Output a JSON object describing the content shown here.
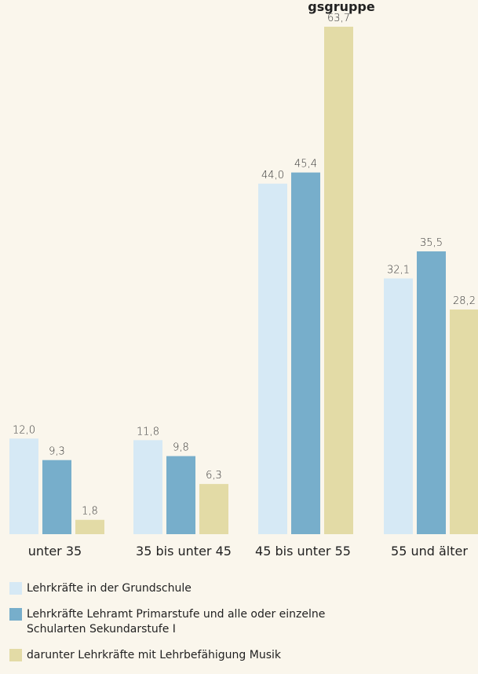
{
  "chart_data": {
    "type": "bar",
    "title_fragment": "gsgruppe",
    "categories": [
      "unter 35",
      "35 bis unter 45",
      "45 bis unter 55",
      "55 und älter"
    ],
    "series": [
      {
        "name": "Lehrkräfte in der Grundschule",
        "color": "#d6e9f5",
        "values": [
          12.0,
          11.8,
          44.0,
          32.1
        ]
      },
      {
        "name": "Lehrkräfte Lehramt Primarstufe und alle oder einzelne Schularten Sekundarstufe I",
        "color": "#77aecb",
        "values": [
          9.3,
          9.8,
          45.4,
          35.5
        ]
      },
      {
        "name": "darunter Lehrkräfte mit Lehrbefähigung Musik",
        "color": "#e3dba6",
        "values": [
          1.8,
          6.3,
          63.7,
          28.2
        ]
      }
    ],
    "value_labels": [
      [
        "12,0",
        "11,8",
        "44,0",
        "32,1"
      ],
      [
        "9,3",
        "9,8",
        "45,4",
        "35,5"
      ],
      [
        "1,8",
        "6,3",
        "63,7",
        "28,2"
      ]
    ],
    "ylim": [
      0,
      63.7
    ],
    "legend_position": "bottom"
  },
  "legend": {
    "items": [
      {
        "label": "Lehrkräfte in der Grundschule",
        "color": "#d6e9f5"
      },
      {
        "label": "Lehrkräfte Lehramt Primarstufe und alle oder einzelne Schularten Sekundarstufe I",
        "color": "#77aecb"
      },
      {
        "label": "darunter Lehrkräfte mit Lehrbefähigung Musik",
        "color": "#e3dba6"
      }
    ]
  }
}
